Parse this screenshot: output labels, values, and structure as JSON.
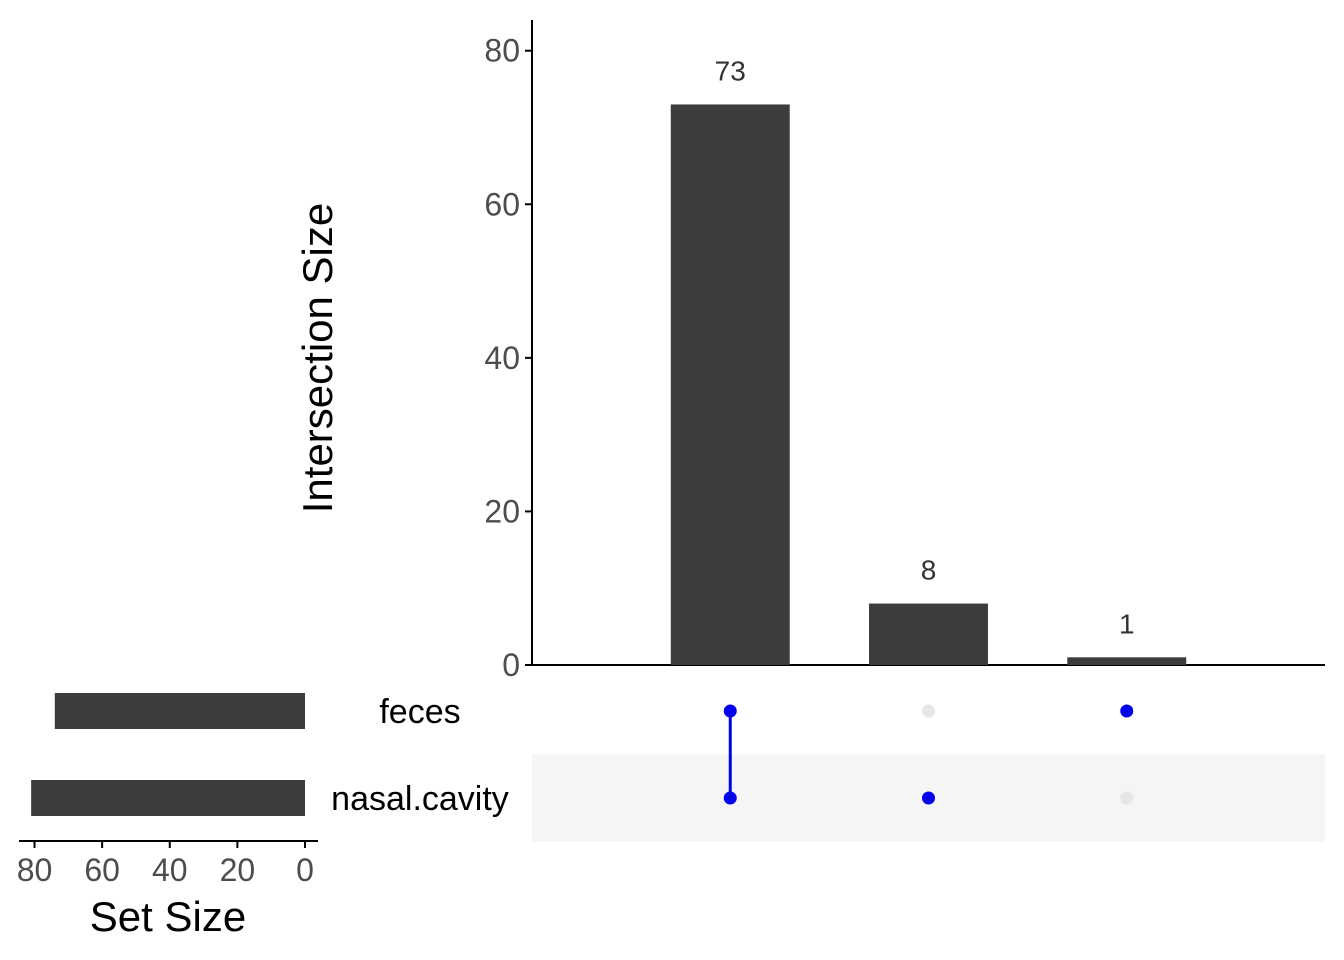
{
  "chart_data": {
    "type": "bar",
    "subtype": "upset",
    "intersection_axis": {
      "ylabel": "Intersection Size",
      "ylim": [
        0,
        84
      ],
      "ticks": [
        0,
        20,
        40,
        60,
        80
      ]
    },
    "intersections": [
      {
        "sets": [
          "feces",
          "nasal.cavity"
        ],
        "value": 73,
        "label": "73"
      },
      {
        "sets": [
          "nasal.cavity"
        ],
        "value": 8,
        "label": "8"
      },
      {
        "sets": [
          "feces"
        ],
        "value": 1,
        "label": "1"
      }
    ],
    "sets": [
      {
        "name": "feces",
        "size": 74
      },
      {
        "name": "nasal.cavity",
        "size": 81
      }
    ],
    "set_size_axis": {
      "xlabel": "Set Size",
      "xlim": [
        0,
        84
      ],
      "ticks": [
        80,
        60,
        40,
        20,
        0
      ],
      "reversed": true
    },
    "colors": {
      "bar": "#3c3c3c",
      "dot_active": "#0000ee",
      "dot_inactive": "#e6e6e6",
      "stripe": "#f5f5f5",
      "axis": "#000000",
      "tick_label": "#4d4d4d"
    }
  }
}
